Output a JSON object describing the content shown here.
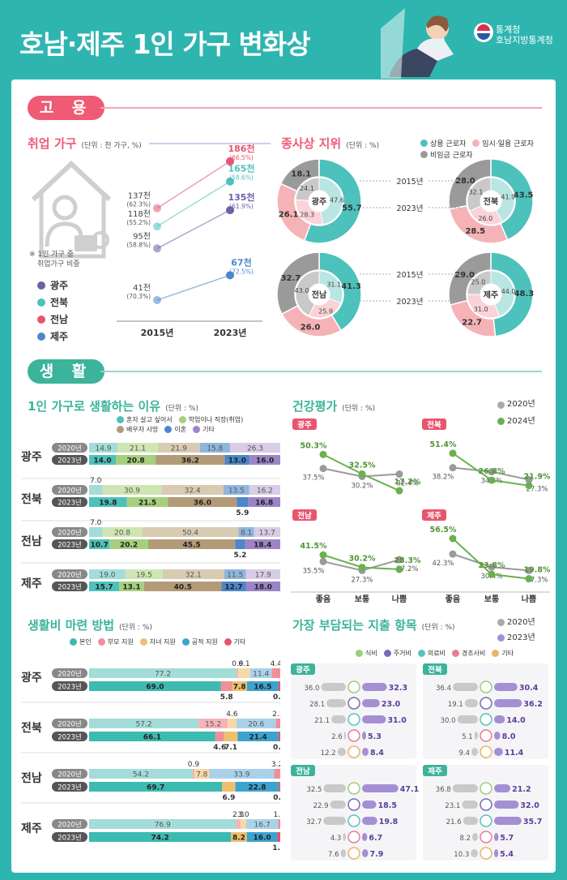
{
  "title": "호남·제주 1인 가구 변화상",
  "org": {
    "line1": "통계청",
    "line2": "호남지방통계청"
  },
  "sections": {
    "employment": "고 용",
    "living": "생 활"
  },
  "emp": {
    "title": "취업 가구",
    "unit": "(단위 : 천 가구, %)",
    "note1": "※ 1인 가구 중",
    "note2": "취업가구 비중",
    "regions": [
      {
        "name": "광주",
        "color": "#6f5ea8"
      },
      {
        "name": "전북",
        "color": "#4dc1bb"
      },
      {
        "name": "전남",
        "color": "#e8556e"
      },
      {
        "name": "제주",
        "color": "#4b87c9"
      }
    ],
    "years": [
      "2015년",
      "2023년"
    ]
  },
  "chart_data": [
    {
      "id": "emp",
      "type": "line",
      "title": "취업 가구",
      "x": [
        "2015년",
        "2023년"
      ],
      "unit_value": "천",
      "series": [
        {
          "name": "전남",
          "values": [
            137,
            186
          ],
          "shares": [
            62.3,
            66.5
          ],
          "color": "#e8556e"
        },
        {
          "name": "전북",
          "values": [
            118,
            165
          ],
          "shares": [
            55.2,
            58.6
          ],
          "color": "#4dc1bb"
        },
        {
          "name": "광주",
          "values": [
            95,
            135
          ],
          "shares": [
            58.8,
            61.9
          ],
          "color": "#6f5ea8"
        },
        {
          "name": "제주",
          "values": [
            41,
            67
          ],
          "shares": [
            70.3,
            72.5
          ],
          "color": "#4b87c9"
        }
      ]
    },
    {
      "id": "status",
      "type": "pie",
      "title": "종사상 지위",
      "unit": "(단위 : %)",
      "legend": [
        "상용 근로자",
        "임시·일용 근로자",
        "비임금 근로자"
      ],
      "colors": [
        "#4dc1bb",
        "#f5b3b8",
        "#9a9a9a"
      ],
      "years": [
        "2015년",
        "2023년"
      ],
      "regions": [
        {
          "name": "광주",
          "inner": [
            47.6,
            28.3,
            24.1
          ],
          "outer": [
            55.7,
            26.1,
            18.1
          ]
        },
        {
          "name": "전북",
          "inner": [
            41.9,
            26.0,
            32.1
          ],
          "outer": [
            43.5,
            28.5,
            28.0
          ]
        },
        {
          "name": "전남",
          "inner": [
            31.1,
            25.9,
            43.0
          ],
          "outer": [
            41.3,
            26.0,
            32.7
          ]
        },
        {
          "name": "제주",
          "inner": [
            44.0,
            31.0,
            25.0
          ],
          "outer": [
            48.3,
            22.7,
            29.0
          ]
        }
      ]
    },
    {
      "id": "reason",
      "type": "bar",
      "title": "1인 가구로 생활하는 이유",
      "unit": "(단위 : %)",
      "legend": [
        "혼자 살고 싶어서",
        "학업이나 직장(취업)",
        "배우자 사망",
        "이혼",
        "기타"
      ],
      "colors": [
        "#a3dcd8",
        "#cfe6b3",
        "#d9cbb2",
        "#8fb6de",
        "#d9cce6"
      ],
      "colors2": [
        "#4dc1bb",
        "#a6cf7e",
        "#b39b77",
        "#4b87c9",
        "#9d84c6"
      ],
      "regions": [
        {
          "name": "광주",
          "y2020": [
            14.9,
            21.1,
            21.9,
            15.8,
            26.3
          ],
          "y2023": [
            14.0,
            20.8,
            36.2,
            13.0,
            16.0
          ]
        },
        {
          "name": "전북",
          "y2020": [
            7.0,
            30.9,
            32.4,
            13.5,
            16.2
          ],
          "y2023": [
            19.8,
            21.5,
            36.0,
            5.9,
            16.8
          ]
        },
        {
          "name": "전남",
          "y2020": [
            7.0,
            20.8,
            50.4,
            8.1,
            13.7
          ],
          "y2023": [
            10.7,
            20.2,
            45.5,
            5.2,
            18.4
          ]
        },
        {
          "name": "제주",
          "y2020": [
            19.0,
            19.5,
            32.1,
            11.5,
            17.9
          ],
          "y2023": [
            15.7,
            13.1,
            40.5,
            12.7,
            18.0
          ]
        }
      ]
    },
    {
      "id": "health",
      "type": "line",
      "title": "건강평가",
      "unit": "(단위 : %)",
      "x": [
        "좋음",
        "보통",
        "나쁨"
      ],
      "legend": [
        "2020년",
        "2024년"
      ],
      "regions": [
        {
          "name": "광주",
          "y2020": [
            37.5,
            30.2,
            32.4
          ],
          "y2024": [
            50.3,
            32.5,
            17.2
          ]
        },
        {
          "name": "전북",
          "y2020": [
            38.2,
            34.5,
            27.3
          ],
          "y2024": [
            51.4,
            26.8,
            21.9
          ]
        },
        {
          "name": "전남",
          "y2020": [
            35.5,
            27.3,
            37.2
          ],
          "y2024": [
            41.5,
            30.2,
            28.3
          ]
        },
        {
          "name": "제주",
          "y2020": [
            42.3,
            30.4,
            27.3
          ],
          "y2024": [
            56.5,
            23.8,
            19.8
          ]
        }
      ]
    },
    {
      "id": "income",
      "type": "bar",
      "title": "생활비 마련 방법",
      "unit": "(단위 : %)",
      "legend": [
        "본인",
        "부모 지원",
        "자녀 지원",
        "공적 지원",
        "기타"
      ],
      "colors": [
        "#a3dcd8",
        "#f5b3b8",
        "#f5d9a8",
        "#a9d2ea",
        "#f08f9a"
      ],
      "colors2": [
        "#3dbab1",
        "#ef8f97",
        "#efbf6e",
        "#3ca3cf",
        "#e3556a"
      ],
      "regions": [
        {
          "name": "광주",
          "y2020": [
            77.2,
            0.9,
            6.1,
            11.4,
            4.4
          ],
          "y2023": [
            69.0,
            5.8,
            7.8,
            16.5,
            0.9
          ]
        },
        {
          "name": "전북",
          "y2020": [
            57.2,
            15.2,
            4.6,
            20.6,
            2.3
          ],
          "y2023": [
            66.1,
            4.6,
            7.1,
            21.4,
            0.9
          ]
        },
        {
          "name": "전남",
          "y2020": [
            54.2,
            0.9,
            7.8,
            33.9,
            3.2
          ],
          "y2023": [
            69.7,
            0.0,
            6.9,
            22.8,
            0.7
          ]
        },
        {
          "name": "제주",
          "y2020": [
            76.9,
            2.3,
            3.0,
            16.7,
            1.1
          ],
          "y2023": [
            74.2,
            0.0,
            8.2,
            16.0,
            1.5
          ]
        }
      ]
    },
    {
      "id": "expense",
      "type": "bar",
      "title": "가장 부담되는 지출 항목",
      "unit": "(단위 : %)",
      "legend": [
        "식비",
        "주거비",
        "의료비",
        "경조사비",
        "기타"
      ],
      "years": [
        "2020년",
        "2023년"
      ],
      "regions": [
        {
          "name": "광주",
          "y2020": [
            36.0,
            28.1,
            21.1,
            2.6,
            12.2
          ],
          "y2023": [
            32.3,
            23.0,
            31.0,
            5.3,
            8.4
          ]
        },
        {
          "name": "전북",
          "y2020": [
            36.4,
            19.1,
            30.0,
            5.1,
            9.4
          ],
          "y2023": [
            30.4,
            36.2,
            14.0,
            8.0,
            11.4
          ]
        },
        {
          "name": "전남",
          "y2020": [
            32.5,
            22.9,
            32.7,
            4.3,
            7.6
          ],
          "y2023": [
            47.1,
            18.5,
            19.8,
            6.7,
            7.9
          ]
        },
        {
          "name": "제주",
          "y2020": [
            36.8,
            23.1,
            21.6,
            8.2,
            10.3
          ],
          "y2023": [
            21.2,
            32.0,
            35.7,
            5.7,
            5.4
          ]
        }
      ]
    }
  ],
  "year_labels": {
    "y2020": "2020년",
    "y2023": "2023년",
    "y2024": "2024년"
  }
}
